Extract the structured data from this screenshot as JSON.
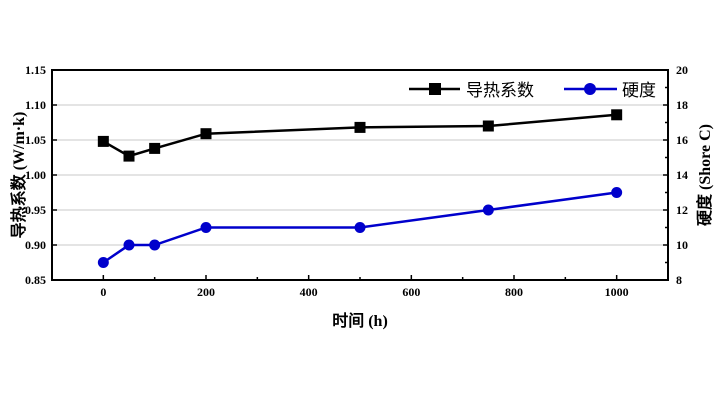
{
  "chart_data": {
    "type": "line",
    "xlabel": "时间 (h)",
    "ylabel_left": "导热系数 (W/m·k)",
    "ylabel_right": "硬度 (Shore C)",
    "xlim": [
      -100,
      1100
    ],
    "ylim_left": [
      0.85,
      1.15
    ],
    "ylim_right": [
      8,
      20
    ],
    "x_ticks": [
      "0",
      "200",
      "400",
      "600",
      "800",
      "1000"
    ],
    "y_left_ticks": [
      "0.85",
      "0.90",
      "0.95",
      "1.00",
      "1.05",
      "1.10",
      "1.15"
    ],
    "y_right_ticks": [
      "8",
      "10",
      "12",
      "14",
      "16",
      "18",
      "20"
    ],
    "grid": "horizontal",
    "legend_position": "top-right",
    "series": [
      {
        "name": "导热系数",
        "axis": "left",
        "color": "#000000",
        "marker": "square",
        "x": [
          0,
          50,
          100,
          200,
          500,
          750,
          1000
        ],
        "y": [
          1.048,
          1.027,
          1.038,
          1.059,
          1.068,
          1.07,
          1.086
        ]
      },
      {
        "name": "硬度",
        "axis": "right",
        "color": "#0000cc",
        "marker": "circle",
        "x": [
          0,
          50,
          100,
          200,
          500,
          750,
          1000
        ],
        "y": [
          9,
          10,
          10,
          11,
          11,
          12,
          13
        ]
      }
    ]
  }
}
